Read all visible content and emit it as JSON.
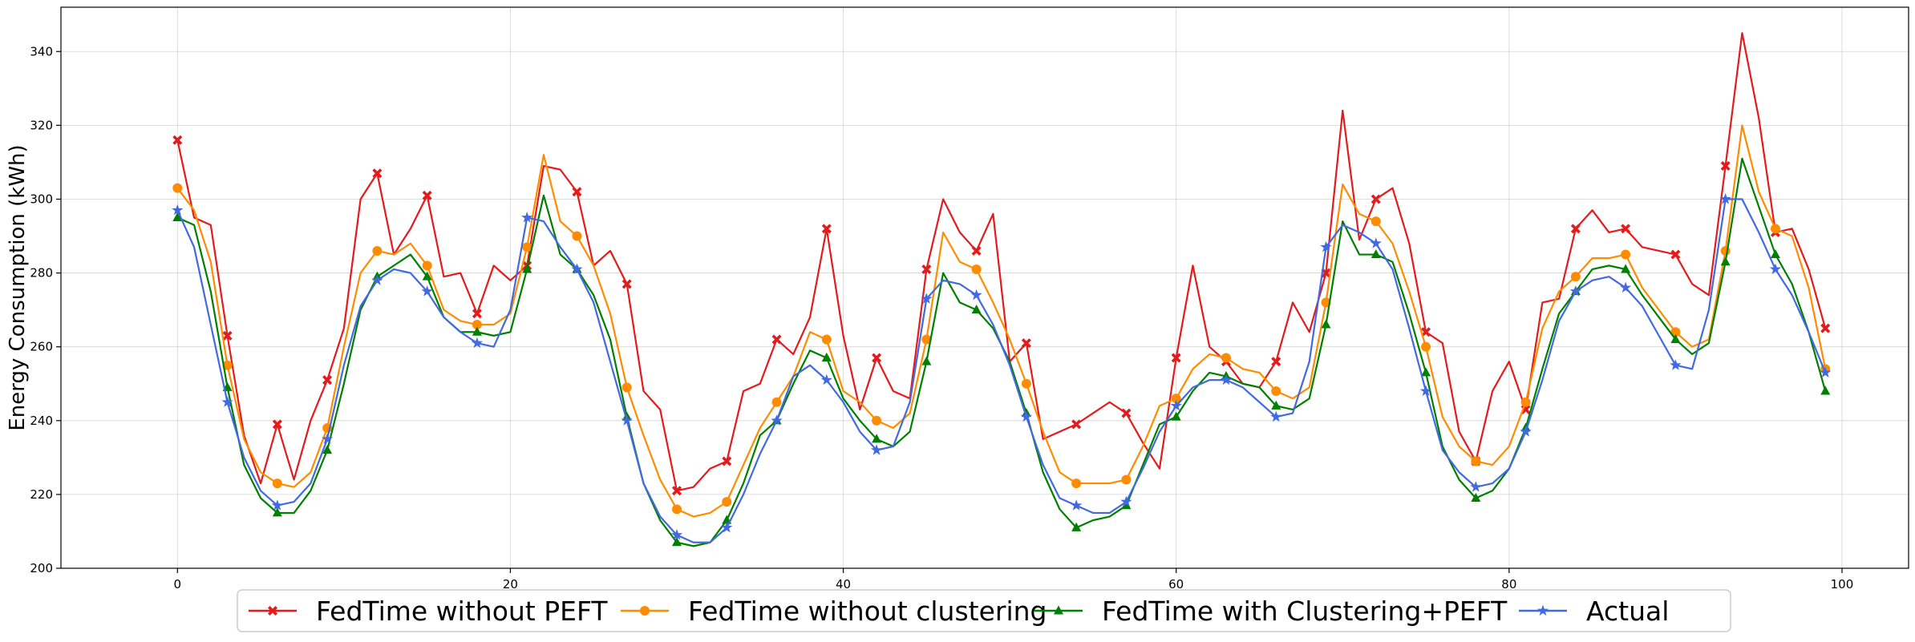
{
  "chart_data": {
    "type": "line",
    "title": "",
    "xlabel": "",
    "ylabel": "Energy Consumption (kWh)",
    "xlim": [
      -7,
      104
    ],
    "ylim": [
      200,
      352
    ],
    "xticks": [
      0,
      20,
      40,
      60,
      80,
      100
    ],
    "yticks": [
      200,
      220,
      240,
      260,
      280,
      300,
      320,
      340
    ],
    "grid": true,
    "legend_position": "bottom-center",
    "series": [
      {
        "name": "FedTime without PEFT",
        "color": "#e41a1c",
        "marker": "x",
        "values": [
          316,
          295,
          293,
          263,
          236,
          223,
          239,
          224,
          240,
          251,
          265,
          300,
          307,
          285,
          292,
          301,
          279,
          280,
          269,
          282,
          278,
          282,
          309,
          308,
          302,
          282,
          286,
          277,
          248,
          243,
          221,
          222,
          227,
          229,
          248,
          250,
          262,
          258,
          268,
          292,
          263,
          243,
          257,
          248,
          246,
          281,
          300,
          291,
          286,
          296,
          256,
          261,
          235,
          237,
          239,
          242,
          245,
          242,
          234,
          227,
          257,
          282,
          260,
          256,
          250,
          249,
          256,
          272,
          264,
          280,
          324,
          289,
          300,
          303,
          288,
          264,
          261,
          237,
          229,
          248,
          256,
          243,
          272,
          273,
          292,
          297,
          291,
          292,
          287,
          286,
          285,
          277,
          274,
          309,
          345,
          322,
          291,
          292,
          281,
          265
        ]
      },
      {
        "name": "FedTime without clustering",
        "color": "#ff8c00",
        "marker": "o",
        "values": [
          303,
          297,
          283,
          255,
          235,
          226,
          223,
          222,
          226,
          238,
          260,
          280,
          286,
          285,
          288,
          282,
          270,
          267,
          266,
          266,
          269,
          287,
          312,
          294,
          290,
          282,
          269,
          249,
          236,
          224,
          216,
          214,
          215,
          218,
          228,
          238,
          245,
          252,
          264,
          262,
          248,
          245,
          240,
          238,
          242,
          262,
          291,
          283,
          281,
          272,
          262,
          250,
          237,
          226,
          223,
          223,
          223,
          224,
          233,
          244,
          246,
          254,
          258,
          257,
          254,
          253,
          248,
          246,
          249,
          272,
          304,
          296,
          294,
          288,
          275,
          260,
          241,
          233,
          229,
          228,
          233,
          245,
          265,
          275,
          279,
          284,
          284,
          285,
          276,
          270,
          264,
          260,
          262,
          286,
          320,
          302,
          292,
          290,
          276,
          254
        ]
      },
      {
        "name": "FedTime with Clustering+PEFT",
        "color": "#008000",
        "marker": "^",
        "values": [
          295,
          293,
          275,
          249,
          228,
          219,
          215,
          215,
          221,
          232,
          250,
          270,
          279,
          282,
          285,
          279,
          268,
          264,
          264,
          263,
          264,
          281,
          301,
          285,
          281,
          274,
          262,
          241,
          223,
          213,
          207,
          206,
          207,
          213,
          223,
          236,
          240,
          250,
          259,
          257,
          246,
          240,
          235,
          233,
          237,
          256,
          280,
          272,
          270,
          265,
          256,
          242,
          226,
          216,
          211,
          213,
          214,
          217,
          228,
          239,
          241,
          248,
          253,
          252,
          250,
          249,
          244,
          243,
          246,
          266,
          294,
          285,
          285,
          283,
          269,
          253,
          233,
          224,
          219,
          221,
          227,
          238,
          254,
          269,
          275,
          281,
          282,
          281,
          274,
          268,
          262,
          258,
          261,
          283,
          311,
          298,
          285,
          277,
          264,
          248
        ]
      },
      {
        "name": "Actual",
        "color": "#4169e1",
        "marker": "*",
        "values": [
          297,
          287,
          266,
          245,
          230,
          221,
          217,
          218,
          223,
          235,
          255,
          271,
          278,
          281,
          280,
          275,
          268,
          264,
          261,
          260,
          270,
          295,
          294,
          287,
          281,
          272,
          256,
          240,
          223,
          214,
          209,
          207,
          207,
          211,
          220,
          231,
          240,
          252,
          255,
          251,
          245,
          237,
          232,
          233,
          245,
          273,
          278,
          277,
          274,
          266,
          255,
          241,
          228,
          219,
          217,
          215,
          215,
          218,
          227,
          237,
          244,
          249,
          251,
          251,
          249,
          245,
          241,
          242,
          256,
          287,
          293,
          291,
          288,
          281,
          265,
          248,
          232,
          226,
          222,
          223,
          227,
          237,
          251,
          267,
          275,
          278,
          279,
          276,
          271,
          263,
          255,
          254,
          270,
          300,
          300,
          291,
          281,
          274,
          264,
          253
        ]
      }
    ]
  }
}
